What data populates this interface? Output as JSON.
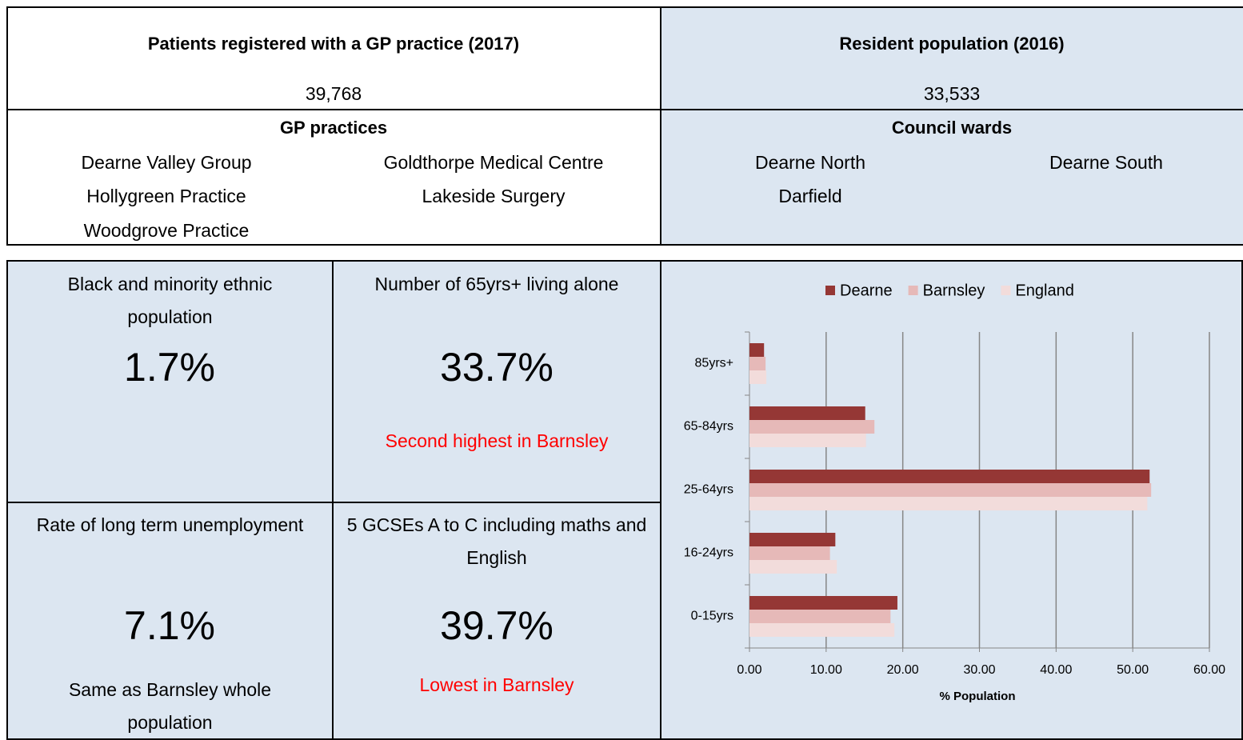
{
  "header": {
    "gp_title": "Patients registered with a GP practice (2017)",
    "gp_value": "39,768",
    "pop_title": "Resident population (2016)",
    "pop_value": "33,533"
  },
  "gp_practices": {
    "title": "GP practices",
    "items": [
      "Dearne Valley Group",
      "Goldthorpe Medical Centre",
      "Hollygreen Practice",
      "Lakeside Surgery",
      "Woodgrove Practice"
    ]
  },
  "council_wards": {
    "title": "Council wards",
    "items": [
      "Dearne North",
      "Dearne South",
      "Darfield"
    ]
  },
  "tiles": [
    {
      "label": "Black and minority ethnic population",
      "value": "1.7%"
    },
    {
      "label": "Number of 65yrs+ living alone",
      "value": "33.7%",
      "note": "Second highest in Barnsley"
    },
    {
      "label": "Rate of long term unemployment",
      "value": "7.1%",
      "note": "Same as Barnsley whole population"
    },
    {
      "label": "5 GCSEs A to C including maths and English",
      "value": "39.7%",
      "note": "Lowest in Barnsley"
    }
  ],
  "chart_data": {
    "type": "bar",
    "orientation": "horizontal",
    "categories": [
      "85yrs+",
      "65-84yrs",
      "25-64yrs",
      "16-24yrs",
      "0-15yrs"
    ],
    "series": [
      {
        "name": "Dearne",
        "color": "#953735",
        "values": [
          1.9,
          15.1,
          52.2,
          11.2,
          19.3
        ]
      },
      {
        "name": "Barnsley",
        "color": "#e6b9b8",
        "values": [
          2.1,
          16.3,
          52.4,
          10.5,
          18.4
        ]
      },
      {
        "name": "England",
        "color": "#f2dcdb",
        "values": [
          2.2,
          15.2,
          51.9,
          11.4,
          18.9
        ]
      }
    ],
    "xlim": [
      0,
      60
    ],
    "xticks": [
      {
        "value": 0,
        "label": "0.00"
      },
      {
        "value": 10,
        "label": "10.00"
      },
      {
        "value": 20,
        "label": "20.00"
      },
      {
        "value": 30,
        "label": "30.00"
      },
      {
        "value": 40,
        "label": "40.00"
      },
      {
        "value": 50,
        "label": "50.00"
      },
      {
        "value": 60,
        "label": "60.00"
      }
    ],
    "xlabel": "% Population",
    "grid": true,
    "legend": "top"
  }
}
